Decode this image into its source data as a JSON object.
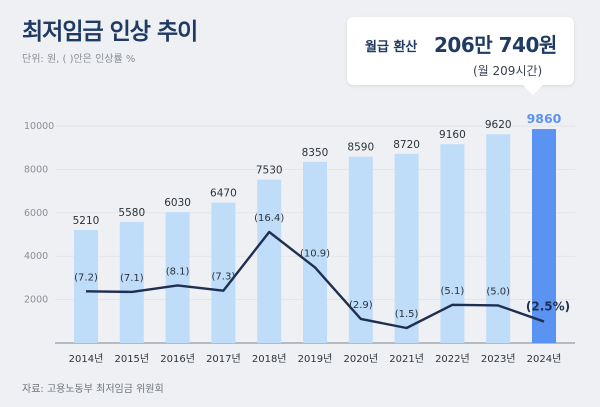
{
  "title": "최저임금 인상 추이",
  "unit_note": "단위: 원, ( )안은 인상률 %",
  "callout": {
    "label": "월급 환산",
    "amount": "206만 740원",
    "hours": "(월 209시간)"
  },
  "source": "자료: 고용노동부 최저임금 위원회",
  "colors": {
    "bar": "#bfdcf9",
    "bar_highlight": "#5b93f3",
    "line": "#1f2f52",
    "title": "#1f3a63"
  },
  "chart_data": {
    "type": "bar",
    "categories": [
      "2014년",
      "2015년",
      "2016년",
      "2017년",
      "2018년",
      "2019년",
      "2020년",
      "2021년",
      "2022년",
      "2023년",
      "2024년"
    ],
    "series": [
      {
        "values": [
          5210,
          5580,
          6030,
          6470,
          7530,
          8350,
          8590,
          8720,
          9160,
          9620,
          9860
        ],
        "value_labels": [
          "5210",
          "5580",
          "6030",
          "6470",
          "7530",
          "8350",
          "8590",
          "8720",
          "9160",
          "9620",
          "9860"
        ]
      },
      {
        "type": "line",
        "values": [
          7.2,
          7.1,
          8.1,
          7.3,
          16.4,
          10.9,
          2.9,
          1.5,
          5.1,
          5.0,
          2.5
        ],
        "value_labels": [
          "(7.2)",
          "(7.1)",
          "(8.1)",
          "(7.3)",
          "(16.4)",
          "(10.9)",
          "(2.9)",
          "(1.5)",
          "(5.1)",
          "(5.0)",
          "(2.5%)"
        ]
      }
    ],
    "y_ticks": [
      "2000",
      "4000",
      "6000",
      "8000",
      "10000"
    ],
    "ylim": [
      0,
      10000
    ],
    "rate_range": [
      1.5,
      16.4
    ],
    "highlight_category": "2024년",
    "grid": true
  }
}
